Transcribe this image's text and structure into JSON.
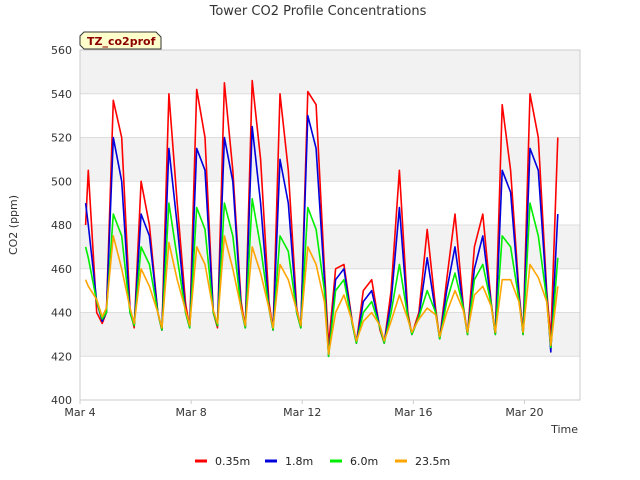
{
  "chart_data": {
    "type": "line",
    "title": "Tower CO2 Profile Concentrations",
    "xlabel": "Time",
    "ylabel": "CO2 (ppm)",
    "badge": "TZ_co2prof",
    "ylim": [
      400,
      560
    ],
    "yticks": [
      400,
      420,
      440,
      460,
      480,
      500,
      520,
      540,
      560
    ],
    "xlim": [
      0,
      18
    ],
    "xticks": [
      {
        "value": 0,
        "label": "Mar 4"
      },
      {
        "value": 4,
        "label": "Mar 8"
      },
      {
        "value": 8,
        "label": "Mar 12"
      },
      {
        "value": 12,
        "label": "Mar 16"
      },
      {
        "value": 16,
        "label": "Mar 20"
      }
    ],
    "legend_position": "bottom",
    "grid": true,
    "x": [
      0.2,
      0.3,
      0.6,
      0.8,
      0.95,
      1.2,
      1.5,
      1.8,
      1.95,
      2.2,
      2.5,
      2.8,
      2.95,
      3.2,
      3.5,
      3.8,
      3.95,
      4.2,
      4.5,
      4.8,
      4.95,
      5.2,
      5.5,
      5.8,
      5.95,
      6.2,
      6.5,
      6.8,
      6.95,
      7.2,
      7.5,
      7.8,
      7.95,
      8.2,
      8.5,
      8.8,
      8.95,
      9.2,
      9.5,
      9.8,
      9.95,
      10.2,
      10.5,
      10.8,
      10.95,
      11.2,
      11.5,
      11.8,
      11.95,
      12.2,
      12.5,
      12.8,
      12.95,
      13.2,
      13.5,
      13.8,
      13.95,
      14.2,
      14.5,
      14.8,
      14.95,
      15.2,
      15.5,
      15.8,
      15.95,
      16.2,
      16.5,
      16.8,
      16.95,
      17.2
    ],
    "series": [
      {
        "name": "0.35m",
        "color": "#ff0000",
        "values": [
          480,
          505,
          440,
          435,
          440,
          537,
          520,
          442,
          433,
          500,
          480,
          440,
          432,
          540,
          490,
          444,
          433,
          542,
          520,
          440,
          433,
          545,
          505,
          445,
          433,
          546,
          510,
          445,
          432,
          540,
          505,
          442,
          433,
          541,
          535,
          460,
          425,
          460,
          462,
          436,
          426,
          450,
          455,
          432,
          426,
          450,
          505,
          440,
          430,
          440,
          478,
          442,
          428,
          455,
          485,
          443,
          430,
          470,
          485,
          445,
          430,
          535,
          505,
          450,
          430,
          540,
          520,
          450,
          428,
          520
        ]
      },
      {
        "name": "1.8m",
        "color": "#0000dd",
        "values": [
          490,
          480,
          445,
          436,
          440,
          520,
          500,
          440,
          434,
          485,
          475,
          440,
          432,
          515,
          480,
          440,
          433,
          515,
          505,
          440,
          434,
          520,
          500,
          442,
          433,
          525,
          490,
          442,
          432,
          510,
          490,
          440,
          433,
          530,
          515,
          455,
          420,
          455,
          460,
          435,
          426,
          445,
          450,
          433,
          426,
          445,
          488,
          438,
          430,
          438,
          465,
          440,
          428,
          450,
          470,
          442,
          430,
          460,
          475,
          444,
          430,
          505,
          495,
          448,
          430,
          515,
          505,
          448,
          422,
          485
        ]
      },
      {
        "name": "6.0m",
        "color": "#00ee00",
        "values": [
          470,
          465,
          445,
          437,
          440,
          485,
          475,
          440,
          434,
          470,
          462,
          440,
          432,
          490,
          465,
          440,
          433,
          488,
          478,
          440,
          434,
          490,
          475,
          442,
          433,
          492,
          470,
          442,
          432,
          475,
          468,
          440,
          433,
          488,
          478,
          450,
          420,
          450,
          455,
          435,
          426,
          440,
          445,
          433,
          426,
          440,
          462,
          438,
          430,
          438,
          450,
          440,
          428,
          445,
          458,
          442,
          430,
          455,
          462,
          444,
          430,
          475,
          470,
          446,
          430,
          490,
          475,
          446,
          424,
          465
        ]
      },
      {
        "name": "23.5m",
        "color": "#ffa500",
        "values": [
          455,
          452,
          446,
          438,
          442,
          475,
          460,
          442,
          435,
          460,
          452,
          440,
          433,
          472,
          455,
          441,
          434,
          470,
          462,
          441,
          435,
          475,
          460,
          442,
          434,
          470,
          458,
          442,
          433,
          462,
          455,
          441,
          434,
          470,
          462,
          445,
          421,
          440,
          448,
          436,
          427,
          436,
          440,
          434,
          427,
          436,
          448,
          437,
          431,
          437,
          442,
          439,
          429,
          440,
          450,
          441,
          431,
          448,
          452,
          443,
          431,
          455,
          455,
          445,
          431,
          462,
          456,
          445,
          425,
          452
        ]
      }
    ]
  }
}
